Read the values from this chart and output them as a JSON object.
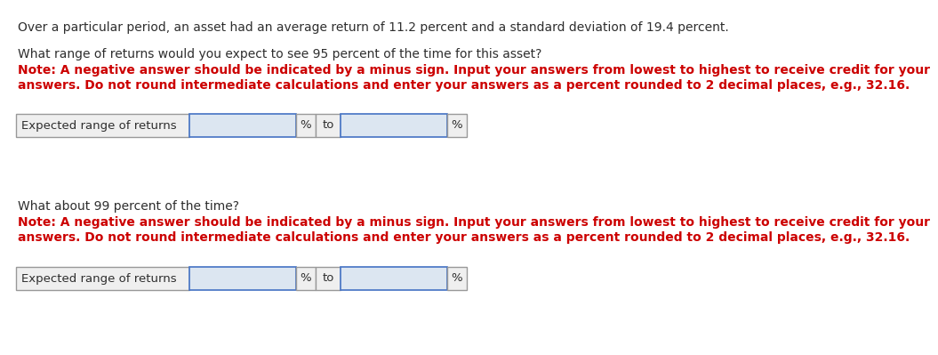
{
  "bg_color": "#ffffff",
  "title_text": "Over a particular period, an asset had an average return of 11.2 percent and a standard deviation of 19.4 percent.",
  "title_color": "#2e2e2e",
  "title_fontsize": 10.0,
  "q1_text": "What range of returns would you expect to see 95 percent of the time for this asset?",
  "q1_color": "#2e2e2e",
  "q1_fontsize": 10.0,
  "note_line1": "Note: A negative answer should be indicated by a minus sign. Input your answers from lowest to highest to receive credit for your",
  "note_line2": "answers. Do not round intermediate calculations and enter your answers as a percent rounded to 2 decimal places, e.g., 32.16.",
  "note_color": "#cc0000",
  "note_fontsize": 10.0,
  "label_text": "Expected range of returns",
  "label_color": "#2e2e2e",
  "label_fontsize": 9.5,
  "to_text": "to",
  "pct_text": "%",
  "q2_text": "What about 99 percent of the time?",
  "q2_color": "#2e2e2e",
  "q2_fontsize": 10.0,
  "box_face_color": "#dce6f1",
  "box_edge_color": "#4472c4",
  "label_box_face": "#efefef",
  "label_box_edge": "#999999",
  "pct_to_box_face": "#efefef",
  "pct_to_box_edge": "#999999"
}
